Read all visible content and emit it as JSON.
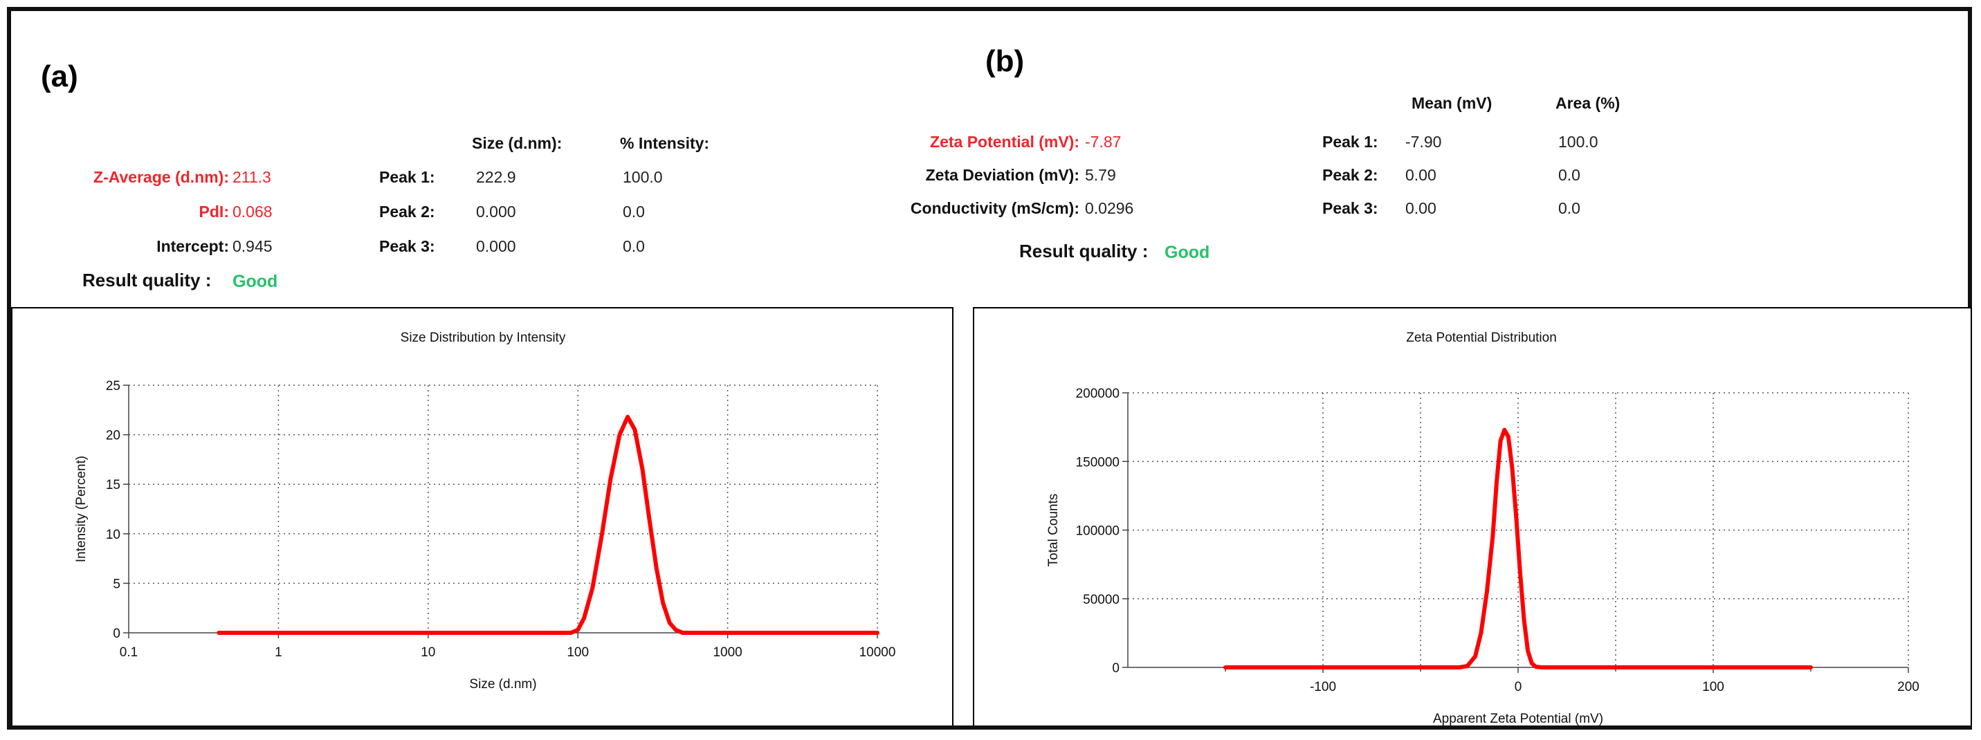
{
  "panel_a": {
    "label": "(a)",
    "z_average_label": "Z-Average (d.nm):",
    "z_average_value": "211.3",
    "pdi_label": "PdI:",
    "pdi_value": "0.068",
    "intercept_label": "Intercept:",
    "intercept_value": "0.945",
    "quality_label": "Result quality :",
    "quality_value": "Good",
    "col_size": "Size (d.nm):",
    "col_intensity": "% Intensity:",
    "peaks": [
      {
        "label": "Peak 1:",
        "size": "222.9",
        "pct": "100.0"
      },
      {
        "label": "Peak 2:",
        "size": "0.000",
        "pct": "0.0"
      },
      {
        "label": "Peak 3:",
        "size": "0.000",
        "pct": "0.0"
      }
    ]
  },
  "panel_b": {
    "label": "(b)",
    "zeta_label": "Zeta Potential (mV):",
    "zeta_value": "-7.87",
    "deviation_label": "Zeta Deviation (mV):",
    "deviation_value": "5.79",
    "conductivity_label": "Conductivity (mS/cm):",
    "conductivity_value": "0.0296",
    "quality_label": "Result quality :",
    "quality_value": "Good",
    "col_mean": "Mean (mV)",
    "col_area": "Area (%)",
    "peaks": [
      {
        "label": "Peak 1:",
        "mean": "-7.90",
        "area": "100.0"
      },
      {
        "label": "Peak 2:",
        "mean": "0.00",
        "area": "0.0"
      },
      {
        "label": "Peak 3:",
        "mean": "0.00",
        "area": "0.0"
      }
    ]
  },
  "colors": {
    "curve": "#ff0000",
    "highlight_text": "#f0252b",
    "good": "#27c26a"
  },
  "chart_data": [
    {
      "type": "line",
      "title": "Size Distribution by Intensity",
      "xlabel": "Size (d.nm)",
      "ylabel": "Intensity (Percent)",
      "xscale": "log",
      "xlim": [
        0.1,
        10000
      ],
      "ylim": [
        0,
        25
      ],
      "xticks": [
        0.1,
        1,
        10,
        100,
        1000,
        10000
      ],
      "xtick_labels": [
        "0.1",
        "1",
        "10",
        "100",
        "1000",
        "10000"
      ],
      "yticks": [
        0,
        5,
        10,
        15,
        20,
        25
      ],
      "ytick_labels": [
        "0",
        "5",
        "10",
        "15",
        "20",
        "25"
      ],
      "grid": true,
      "series": [
        {
          "x": [
            0.4,
            1,
            10,
            90,
            100,
            110,
            125,
            145,
            165,
            190,
            215,
            240,
            270,
            300,
            335,
            370,
            410,
            450,
            500,
            600,
            1000,
            10000
          ],
          "y": [
            0,
            0,
            0,
            0,
            0.3,
            1.5,
            4.5,
            10,
            15.5,
            20,
            21.8,
            20.5,
            16.5,
            11.5,
            6.5,
            3,
            1,
            0.3,
            0,
            0,
            0,
            0
          ]
        }
      ]
    },
    {
      "type": "line",
      "title": "Zeta Potential Distribution",
      "xlabel": "Apparent Zeta Potential (mV)",
      "ylabel": "Total Counts",
      "xlim": [
        -200,
        200
      ],
      "ylim": [
        0,
        200000
      ],
      "xticks": [
        -100,
        0,
        100,
        200
      ],
      "xtick_labels": [
        "-100",
        "0",
        "100",
        "200"
      ],
      "yticks": [
        0,
        50000,
        100000,
        150000,
        200000
      ],
      "ytick_labels": [
        "0",
        "50000",
        "100000",
        "150000",
        "200000"
      ],
      "grid": true,
      "series": [
        {
          "x": [
            -150,
            -100,
            -50,
            -30,
            -26,
            -22,
            -19,
            -16,
            -13,
            -11,
            -9,
            -7,
            -5,
            -3,
            -1,
            1,
            3,
            5,
            7,
            9,
            12,
            20,
            50,
            100,
            150
          ],
          "y": [
            0,
            0,
            0,
            0,
            1000,
            8000,
            25000,
            55000,
            95000,
            135000,
            165000,
            173000,
            168000,
            145000,
            110000,
            70000,
            35000,
            12000,
            3000,
            500,
            0,
            0,
            0,
            0,
            0
          ]
        }
      ]
    }
  ]
}
